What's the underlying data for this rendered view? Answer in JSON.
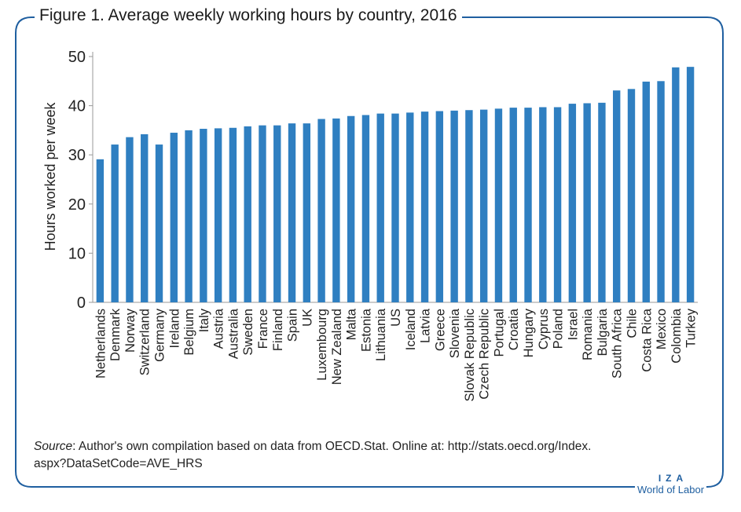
{
  "figure": {
    "title": "Figure 1. Average weekly working hours by country, 2016"
  },
  "source": {
    "label": "Source",
    "text": ": Author's own compilation based on data from OECD.Stat. Online at: http://stats.oecd.org/Index.",
    "text2": "aspx?DataSetCode=AVE_HRS"
  },
  "logo": {
    "letters": "IZA",
    "subtitle": "World of Labor"
  },
  "colors": {
    "bar": "#2f7fc1",
    "frame": "#1f5fa0",
    "axis": "#999999"
  },
  "chart_data": {
    "type": "bar",
    "title": "Figure 1. Average weekly working hours by country, 2016",
    "xlabel": "",
    "ylabel": "Hours worked per week",
    "ylim": [
      0,
      50
    ],
    "yticks": [
      0,
      10,
      20,
      30,
      40,
      50
    ],
    "grid": false,
    "categories": [
      "Netherlands",
      "Denmark",
      "Norway",
      "Switzerland",
      "Germany",
      "Ireland",
      "Belgium",
      "Italy",
      "Austria",
      "Australia",
      "Sweden",
      "France",
      "Finland",
      "Spain",
      "UK",
      "Luxembourg",
      "New Zealand",
      "Malta",
      "Estonia",
      "Lithuania",
      "US",
      "Iceland",
      "Latvia",
      "Greece",
      "Slovenia",
      "Slovak Republic",
      "Czech Republic",
      "Portugal",
      "Croatia",
      "Hungary",
      "Cyprus",
      "Poland",
      "Israel",
      "Romania",
      "Bulgaria",
      "South Africa",
      "Chile",
      "Costa Rica",
      "Mexico",
      "Colombia",
      "Turkey"
    ],
    "values": [
      29.1,
      32.1,
      33.6,
      34.2,
      32.1,
      34.5,
      35.0,
      35.3,
      35.4,
      35.5,
      35.8,
      36.0,
      36.0,
      36.4,
      36.4,
      37.3,
      37.4,
      37.9,
      38.1,
      38.4,
      38.4,
      38.6,
      38.8,
      38.9,
      39.0,
      39.1,
      39.2,
      39.4,
      39.6,
      39.6,
      39.7,
      39.7,
      40.4,
      40.5,
      40.6,
      43.1,
      43.4,
      44.9,
      45.0,
      47.8,
      47.9
    ]
  }
}
